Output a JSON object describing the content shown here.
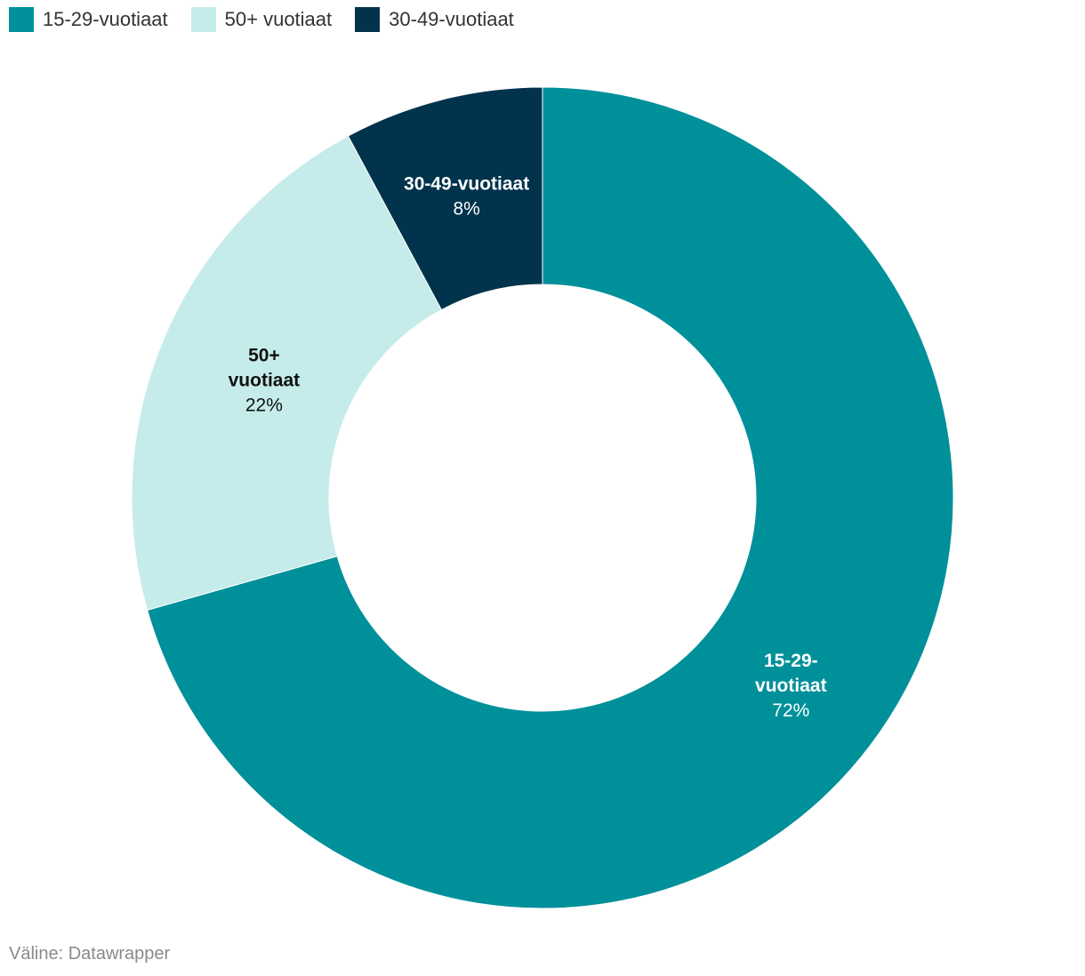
{
  "chart_data": {
    "type": "pie",
    "style": "donut",
    "series": [
      {
        "name": "15-29-vuotiaat",
        "value": 72,
        "color": "#00909a"
      },
      {
        "name": "50+ vuotiaat",
        "value": 22,
        "color": "#c5ecea"
      },
      {
        "name": "30-49-vuotiaat",
        "value": 8,
        "color": "#01334c"
      }
    ],
    "slice_labels": [
      {
        "lines": [
          "15-29-",
          "vuotiaat"
        ],
        "value_text": "72%",
        "text_color": "#ffffff"
      },
      {
        "lines": [
          "50+",
          "vuotiaat"
        ],
        "value_text": "22%",
        "text_color": "#111111"
      },
      {
        "lines": [
          "30-49-vuotiaat"
        ],
        "value_text": "8%",
        "text_color": "#ffffff"
      }
    ],
    "legend": {
      "position": "top-left",
      "items": [
        {
          "label": "15-29-vuotiaat",
          "color": "#00909a"
        },
        {
          "label": "50+ vuotiaat",
          "color": "#c5ecea"
        },
        {
          "label": "30-49-vuotiaat",
          "color": "#01334c"
        }
      ]
    }
  },
  "footer": {
    "source_text": "Väline: Datawrapper"
  }
}
